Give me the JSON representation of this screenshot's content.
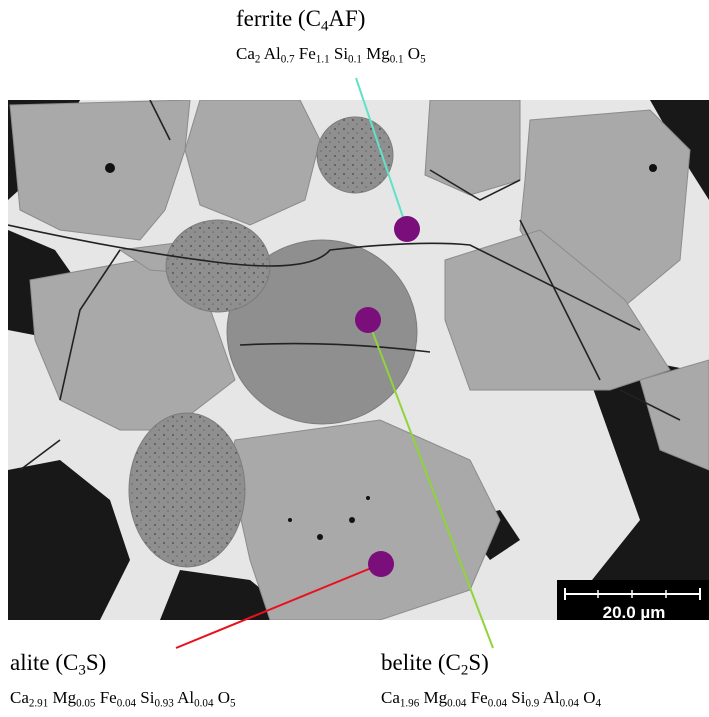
{
  "ferrite": {
    "name_pre": "ferrite (C",
    "name_sub": "4",
    "name_post": "AF)",
    "formula": [
      [
        "Ca",
        "2"
      ],
      [
        "Al",
        "0.7"
      ],
      [
        "Fe",
        "1.1"
      ],
      [
        "Si",
        "0.1"
      ],
      [
        "Mg",
        "0.1"
      ],
      [
        "O",
        "5"
      ]
    ],
    "line_color": "#5fe3c8"
  },
  "belite": {
    "name_pre": "belite (C",
    "name_sub": "2",
    "name_post": "S)",
    "formula": [
      [
        "Ca",
        "1.96"
      ],
      [
        "Mg",
        "0.04"
      ],
      [
        "Fe",
        "0.04"
      ],
      [
        "Si",
        "0.9"
      ],
      [
        "Al",
        "0.04"
      ],
      [
        "O",
        "4"
      ]
    ],
    "line_color": "#8fd43a"
  },
  "alite": {
    "name_pre": "alite (C",
    "name_sub": "3",
    "name_post": "S)",
    "formula": [
      [
        "Ca",
        "2.91"
      ],
      [
        "Mg",
        "0.05"
      ],
      [
        "Fe",
        "0.04"
      ],
      [
        "Si",
        "0.93"
      ],
      [
        "Al",
        "0.04"
      ],
      [
        "O",
        "5"
      ]
    ],
    "line_color": "#e8101c"
  },
  "marker_color": "#7a0e7a",
  "scale_bar": {
    "label": "20.0 µm"
  }
}
